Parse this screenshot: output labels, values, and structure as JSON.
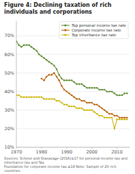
{
  "chart_data": {
    "type": "line",
    "title": "Figure 4: Declining taxation of rich individuals and corporations",
    "annotations": [
      "Sources: Scheve and Stasavage (2016)±17 for personal income tax and inheritance tax and Tax\nFoundation for corporate income tax.±18 Note: Sample of 20 rich countries."
    ],
    "x": [
      1970,
      1971,
      1972,
      1973,
      1974,
      1975,
      1976,
      1977,
      1978,
      1979,
      1980,
      1981,
      1982,
      1983,
      1984,
      1985,
      1986,
      1987,
      1988,
      1989,
      1990,
      1991,
      1992,
      1993,
      1994,
      1995,
      1996,
      1997,
      1998,
      1999,
      2000,
      2001,
      2002,
      2003,
      2004,
      2005,
      2006,
      2007,
      2008,
      2009,
      2010,
      2011,
      2012,
      2013,
      2014
    ],
    "xlim": [
      1970,
      2015
    ],
    "xticks": [
      1970,
      1980,
      1990,
      2000,
      2010
    ],
    "ylim": [
      10,
      78
    ],
    "yticks": [
      {
        "value": 10,
        "label": "10%"
      },
      {
        "value": 20,
        "label": "20%"
      },
      {
        "value": 30,
        "label": "30%"
      },
      {
        "value": 40,
        "label": "40%"
      },
      {
        "value": 50,
        "label": "50%"
      },
      {
        "value": 60,
        "label": "60%"
      },
      {
        "value": 70,
        "label": "70%"
      }
    ],
    "grid": true,
    "legend": "upper right",
    "marker": "circle",
    "line_style": "solid",
    "series": [
      {
        "name": "Top personal income tax rate",
        "color": "#5a8a2e",
        "values": [
          67,
          65,
          64,
          65,
          65,
          65,
          64,
          63,
          62,
          60,
          59,
          58,
          57,
          56,
          55,
          54,
          52,
          49,
          47,
          46,
          46,
          46,
          46,
          45,
          44,
          44,
          44,
          43,
          42,
          42,
          42,
          42,
          42,
          41,
          41,
          41,
          40,
          40,
          40,
          39,
          38,
          38,
          38,
          39,
          39
        ]
      },
      {
        "name": "Corporate income tax rate",
        "color": "#b85c00",
        "values": [
          null,
          null,
          null,
          null,
          null,
          null,
          null,
          null,
          null,
          null,
          47,
          46,
          48,
          49,
          49,
          50,
          48,
          46,
          43,
          41,
          40,
          39,
          38,
          37,
          36,
          36,
          35,
          35,
          34,
          34,
          34,
          33,
          33,
          32,
          31,
          30,
          29,
          28,
          28,
          27,
          27,
          26,
          26,
          26,
          26
        ]
      },
      {
        "name": "Top inheritance tax rate",
        "color": "#c8b400",
        "values": [
          38,
          38,
          37,
          37,
          37,
          37,
          37,
          37,
          37,
          37,
          37,
          36,
          36,
          36,
          36,
          36,
          35,
          35,
          34,
          33,
          33,
          32,
          32,
          32,
          31,
          31,
          31,
          30,
          30,
          30,
          30,
          29,
          28,
          27,
          27,
          26,
          26,
          26,
          26,
          20,
          25,
          25,
          25,
          25,
          25
        ]
      }
    ]
  }
}
